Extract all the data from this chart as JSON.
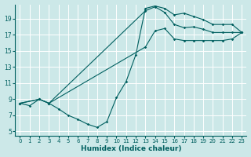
{
  "xlabel": "Humidex (Indice chaleur)",
  "bg_color": "#cce8e8",
  "grid_color": "#ffffff",
  "line_color": "#005f5f",
  "xlim": [
    -0.5,
    23.5
  ],
  "ylim": [
    4.5,
    20.8
  ],
  "xticks": [
    0,
    1,
    2,
    3,
    4,
    5,
    6,
    7,
    8,
    9,
    10,
    11,
    12,
    13,
    14,
    15,
    16,
    17,
    18,
    19,
    20,
    21,
    22,
    23
  ],
  "yticks": [
    5,
    7,
    9,
    11,
    13,
    15,
    17,
    19
  ],
  "line1_x": [
    0,
    1,
    2,
    3,
    4,
    5,
    6,
    7,
    8,
    9,
    10,
    11,
    12,
    13,
    14,
    15,
    16,
    17,
    18,
    19,
    20,
    21,
    22,
    23
  ],
  "line1_y": [
    8.5,
    8.2,
    9.0,
    8.5,
    7.8,
    7.0,
    6.5,
    5.9,
    5.5,
    6.2,
    9.2,
    11.2,
    14.5,
    20.3,
    20.6,
    20.3,
    19.5,
    19.7,
    19.3,
    18.9,
    18.3,
    18.3,
    18.3,
    17.3
  ],
  "line2_x": [
    0,
    2,
    3,
    13,
    14,
    15,
    16,
    17,
    18,
    19,
    20,
    21,
    22,
    23
  ],
  "line2_y": [
    8.5,
    9.0,
    8.5,
    20.0,
    20.5,
    19.8,
    18.3,
    17.9,
    18.0,
    17.7,
    17.3,
    17.3,
    17.3,
    17.3
  ],
  "line3_x": [
    0,
    2,
    3,
    13,
    14,
    15,
    16,
    17,
    18,
    19,
    20,
    21,
    22,
    23
  ],
  "line3_y": [
    8.5,
    9.0,
    8.5,
    15.5,
    17.5,
    17.8,
    16.5,
    16.3,
    16.3,
    16.3,
    16.3,
    16.3,
    16.5,
    17.3
  ]
}
